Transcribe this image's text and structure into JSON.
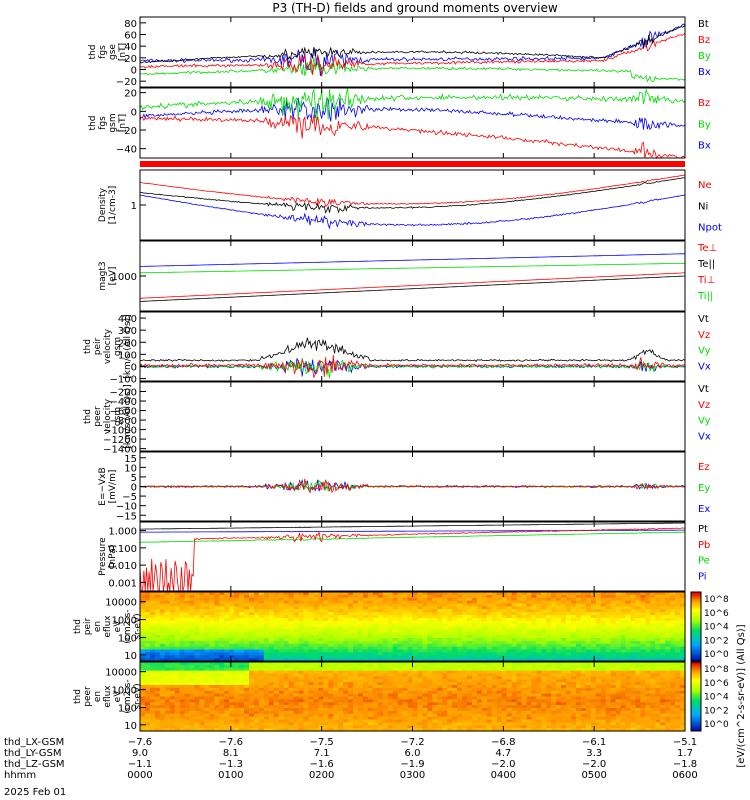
{
  "title": "P3 (TH-D) fields and ground moments overview",
  "date_label": "2025 Feb 01",
  "spectrogram_colorbar_label": "[eV/(cm^2-s-sr-eV)] (All Qs)]",
  "colors": {
    "black": "#000000",
    "red": "#ff0000",
    "green": "#00dd00",
    "blue": "#0000ff"
  },
  "chart_data": [
    {
      "id": "p1",
      "type": "line",
      "ylabel": [
        "thd",
        "fgs",
        "gse",
        "[nT]"
      ],
      "yticks": [
        "80",
        "60",
        "40",
        "20",
        "0",
        "−20"
      ],
      "ylim": [
        -30,
        90
      ],
      "legend": [
        {
          "name": "Bt",
          "color": "black"
        },
        {
          "name": "Bz",
          "color": "red"
        },
        {
          "name": "By",
          "color": "green"
        },
        {
          "name": "Bx",
          "color": "blue"
        }
      ]
    },
    {
      "id": "p2",
      "type": "line",
      "ylabel": [
        "thd",
        "fgs",
        "gsm",
        "[nT]"
      ],
      "yticks": [
        "20",
        "0",
        "−20",
        "−40"
      ],
      "ylim": [
        -50,
        25
      ],
      "legend": [
        {
          "name": "Bz",
          "color": "red"
        },
        {
          "name": "By",
          "color": "green"
        },
        {
          "name": "Bx",
          "color": "blue"
        }
      ]
    },
    {
      "id": "p3",
      "type": "line",
      "ylabel": [
        "Density",
        "[1/cm-3]"
      ],
      "yticks": [
        "1"
      ],
      "scale": "log",
      "legend": [
        {
          "name": "Ne",
          "color": "red"
        },
        {
          "name": "Ni",
          "color": "black"
        },
        {
          "name": "Npot",
          "color": "blue"
        }
      ]
    },
    {
      "id": "p4",
      "type": "line",
      "ylabel": [
        "magt3",
        "[eV]"
      ],
      "yticks": [
        "1000"
      ],
      "scale": "log",
      "legend": [
        {
          "name": "Te⊥",
          "color": "red"
        },
        {
          "name": "Te||",
          "color": "black"
        },
        {
          "name": "Ti⊥",
          "color": "red"
        },
        {
          "name": "Ti||",
          "color": "green"
        }
      ]
    },
    {
      "id": "p5",
      "type": "line",
      "ylabel": [
        "thd",
        "peir",
        "velocity",
        "gsm",
        "[km/s (All Qs)]"
      ],
      "yticks": [
        "400",
        "300",
        "200",
        "100",
        "0",
        "−100"
      ],
      "ylim": [
        -120,
        450
      ],
      "legend": [
        {
          "name": "Vt",
          "color": "black"
        },
        {
          "name": "Vz",
          "color": "red"
        },
        {
          "name": "Vy",
          "color": "green"
        },
        {
          "name": "Vx",
          "color": "blue"
        }
      ]
    },
    {
      "id": "p6",
      "type": "line",
      "ylabel": [
        "thd",
        "peer",
        "velocity",
        "gsm",
        "[km/s (All Qs)]"
      ],
      "yticks": [
        "−200",
        "−400",
        "−600",
        "−800",
        "−1000",
        "−1200",
        "−1400"
      ],
      "ylim": [
        -1450,
        0
      ],
      "legend": [
        {
          "name": "Vt",
          "color": "black"
        },
        {
          "name": "Vz",
          "color": "red"
        },
        {
          "name": "Vy",
          "color": "green"
        },
        {
          "name": "Vx",
          "color": "blue"
        }
      ]
    },
    {
      "id": "p7",
      "type": "line",
      "ylabel": [
        "E=−VxB",
        "[mV/m]"
      ],
      "yticks": [
        "15",
        "10",
        "5",
        "0",
        "−5",
        "−10",
        "−15"
      ],
      "ylim": [
        -18,
        18
      ],
      "legend": [
        {
          "name": "Ez",
          "color": "red"
        },
        {
          "name": "Ey",
          "color": "green"
        },
        {
          "name": "Ex",
          "color": "blue"
        }
      ]
    },
    {
      "id": "p8",
      "type": "line",
      "ylabel": [
        "Pressure",
        "[nPa]"
      ],
      "yticks": [
        "1.000",
        "0.100",
        "0.010",
        "0.001"
      ],
      "scale": "log",
      "legend": [
        {
          "name": "Pt",
          "color": "black"
        },
        {
          "name": "Pb",
          "color": "red"
        },
        {
          "name": "Pe",
          "color": "green"
        },
        {
          "name": "Pi",
          "color": "blue"
        }
      ]
    },
    {
      "id": "p9",
      "type": "heatmap",
      "ylabel": [
        "thd",
        "peir",
        "en",
        "eflux",
        "eV",
        "(cm2-s-",
        "sr-eV)"
      ],
      "yticks": [
        "10000",
        "1000",
        "100",
        "10"
      ],
      "colorbar_ticks": [
        "10^8",
        "10^6",
        "10^4",
        "10^2",
        "10^0"
      ]
    },
    {
      "id": "p10",
      "type": "heatmap",
      "ylabel": [
        "thd",
        "peer",
        "en",
        "eflux",
        "eV",
        "(cm2-s-",
        "sr-eV)"
      ],
      "yticks": [
        "10000",
        "1000",
        "100",
        "10"
      ],
      "colorbar_ticks": [
        "10^8",
        "10^6",
        "10^4",
        "10^2",
        "10^0"
      ]
    }
  ],
  "x_axis": {
    "row_labels": [
      "thd_LX-GSM",
      "thd_LY-GSM",
      "thd_LZ-GSM",
      "hhmm"
    ],
    "ticks": [
      {
        "lx": "−7.6",
        "ly": "9.0",
        "lz": "−1.1",
        "time": "0000"
      },
      {
        "lx": "−7.6",
        "ly": "8.1",
        "lz": "−1.3",
        "time": "0100"
      },
      {
        "lx": "−7.5",
        "ly": "7.1",
        "lz": "−1.6",
        "time": "0200"
      },
      {
        "lx": "−7.2",
        "ly": "6.0",
        "lz": "−1.9",
        "time": "0300"
      },
      {
        "lx": "−6.8",
        "ly": "4.7",
        "lz": "−2.0",
        "time": "0400"
      },
      {
        "lx": "−6.1",
        "ly": "3.3",
        "lz": "−2.0",
        "time": "0500"
      },
      {
        "lx": "−5.1",
        "ly": "1.7",
        "lz": "−1.8",
        "time": "0600"
      }
    ]
  }
}
